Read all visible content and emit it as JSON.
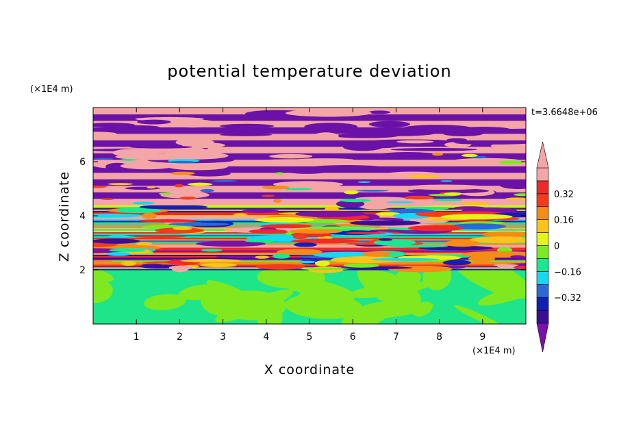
{
  "chart_data": {
    "type": "heatmap",
    "title": "potential temperature deviation",
    "xlabel": "X coordinate",
    "ylabel": "Z coordinate",
    "x_unit": "(×1E4 m)",
    "y_unit": "(×1E4 m)",
    "time_label": "t=3.6648e+06",
    "xlim": [
      0,
      10
    ],
    "ylim": [
      0,
      8
    ],
    "x_ticks": [
      "1",
      "2",
      "3",
      "4",
      "5",
      "6",
      "7",
      "8",
      "9"
    ],
    "y_ticks": [
      "2",
      "4",
      "6"
    ],
    "colorbar": {
      "levels": [
        -0.48,
        -0.4,
        -0.32,
        -0.24,
        -0.16,
        -0.08,
        0,
        0.08,
        0.16,
        0.24,
        0.32,
        0.4,
        0.48
      ],
      "tick_labels": [
        "0.32",
        "0.16",
        "0",
        "−0.16",
        "−0.32"
      ],
      "tick_values": [
        0.32,
        0.16,
        0,
        -0.16,
        -0.32
      ],
      "colors": [
        "#7a12a8",
        "#3a0f96",
        "#1020b4",
        "#2a6ad8",
        "#18d8f0",
        "#18e890",
        "#78ec20",
        "#e4f418",
        "#fcc418",
        "#f48c18",
        "#f43c1c",
        "#f02a2a",
        "#f4a6a6"
      ],
      "below_color": "#7a12a8",
      "above_color": "#f4a6a6"
    },
    "layers": {
      "upper_stratified": {
        "z_range": [
          4.4,
          8.0
        ],
        "pattern": "alternating bands",
        "colors": [
          "#f4a6a6",
          "#6a12a8"
        ]
      },
      "mixing_zone": {
        "z_range": [
          2.0,
          4.4
        ],
        "pattern": "turbulent multicolor bands"
      },
      "lower_layer": {
        "z_range": [
          0,
          2.0
        ],
        "pattern": "green patches",
        "colors": [
          "#1ee58a",
          "#80e81e"
        ]
      }
    }
  }
}
